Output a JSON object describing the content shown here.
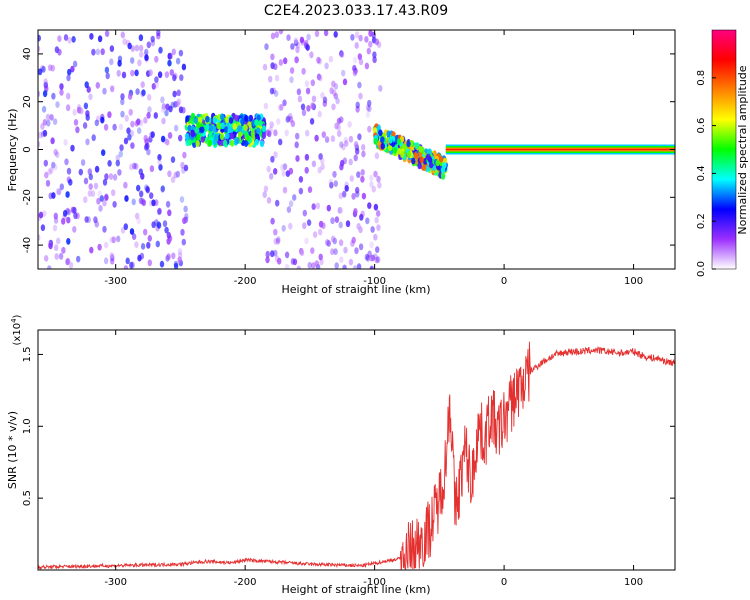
{
  "title": "C2E4.2023.033.17.43.R09",
  "chart_data": [
    {
      "type": "heatmap",
      "xlabel": "Height of straight line (km)",
      "ylabel": "Frequency (Hz)",
      "xlim": [
        -360,
        132
      ],
      "ylim": [
        -50,
        50
      ],
      "x_ticks": [
        "-300",
        "-200",
        "-100",
        "0",
        "100"
      ],
      "x_tick_values": [
        -300,
        -200,
        -100,
        0,
        100
      ],
      "y_ticks": [
        "40",
        "20",
        "0",
        "-20",
        "-40"
      ],
      "y_tick_values": [
        40,
        20,
        0,
        -20,
        -40
      ],
      "colorbar": {
        "label": "Normalized spectral amplitude",
        "range": [
          0,
          1
        ],
        "ticks": [
          "0.0",
          "0.2",
          "0.4",
          "0.6",
          "0.8"
        ],
        "tick_values": [
          0.0,
          0.2,
          0.4,
          0.6,
          0.8
        ],
        "colors": [
          "#ffffff",
          "#9b30ff",
          "#0000ff",
          "#00ffff",
          "#00ff00",
          "#ffff00",
          "#ff8000",
          "#ff0000",
          "#ff0080"
        ]
      },
      "regions": [
        {
          "x": [
            -360,
            -245
          ],
          "freq_center": 0,
          "freq_spread": 50,
          "amplitude": 0.15,
          "description_color": "noise"
        },
        {
          "x": [
            -245,
            -185
          ],
          "freq_center": 8,
          "freq_spread": 6,
          "amplitude": 0.35
        },
        {
          "x": [
            -185,
            -95
          ],
          "freq_center": 0,
          "freq_spread": 50,
          "amplitude": 0.12
        },
        {
          "x": [
            -100,
            -45
          ],
          "freq_center": 6,
          "freq_spread": 4,
          "amplitude": 0.45
        },
        {
          "x": [
            -45,
            132
          ],
          "freq_center": 0,
          "freq_spread": 1,
          "amplitude": 0.75
        }
      ]
    },
    {
      "type": "line",
      "xlabel": "Height of straight line (km)",
      "ylabel": "SNR (10 * v/v)",
      "y_multiplier": "(x10",
      "y_multiplier_exp": "4",
      "y_multiplier_close": ")",
      "xlim": [
        -360,
        132
      ],
      "ylim": [
        0,
        1.67
      ],
      "x_ticks": [
        "-300",
        "-200",
        "-100",
        "0",
        "100"
      ],
      "x_tick_values": [
        -300,
        -200,
        -100,
        0,
        100
      ],
      "y_ticks": [
        "1.5",
        "1.0",
        "0.5"
      ],
      "y_tick_values": [
        1.5,
        1.0,
        0.5
      ],
      "series_color": "#e53030",
      "series": [
        {
          "x": [
            -360,
            -300,
            -250,
            -230,
            -210,
            -200,
            -150,
            -110,
            -80,
            -70,
            -60,
            -55,
            -50,
            -45,
            -42,
            -40,
            -38,
            -35,
            -30,
            -25,
            -20,
            -15,
            -10,
            -5,
            0,
            5,
            10,
            15,
            20,
            30,
            40,
            50,
            60,
            70,
            80,
            90,
            100,
            105,
            110,
            120,
            125,
            132
          ],
          "y": [
            0.02,
            0.03,
            0.04,
            0.06,
            0.05,
            0.07,
            0.04,
            0.03,
            0.08,
            0.15,
            0.25,
            0.35,
            0.5,
            0.75,
            1.2,
            0.9,
            0.4,
            0.55,
            0.85,
            0.6,
            1.0,
            0.9,
            1.1,
            0.95,
            1.05,
            1.15,
            1.25,
            1.3,
            1.38,
            1.45,
            1.5,
            1.52,
            1.52,
            1.53,
            1.52,
            1.51,
            1.52,
            1.5,
            1.48,
            1.47,
            1.45,
            1.44
          ]
        }
      ]
    }
  ]
}
